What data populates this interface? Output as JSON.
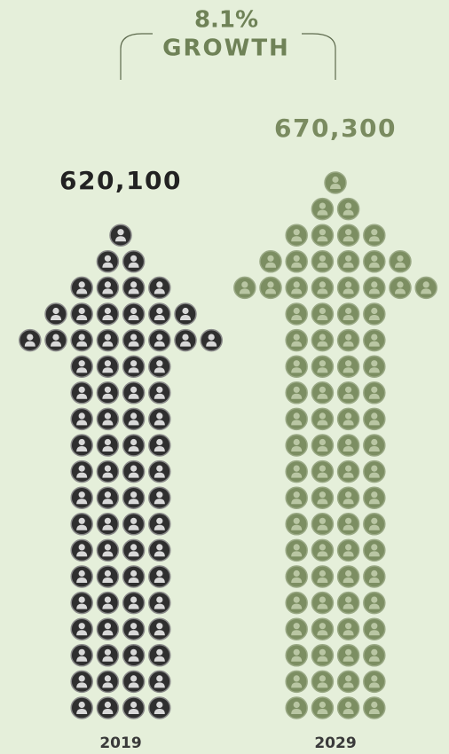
{
  "chart_data": {
    "type": "pictograph",
    "annotations": [
      "8.1%",
      "GROWTH"
    ],
    "categories": [
      "2019",
      "2029"
    ],
    "values": [
      620100,
      670300
    ],
    "value_labels": [
      "620,100",
      "670,300"
    ],
    "colors": [
      "#2f2f2f",
      "#7c8e62"
    ]
  }
}
